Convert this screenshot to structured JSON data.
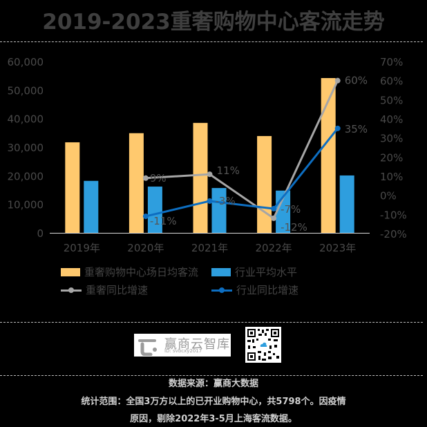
{
  "title": "2019-2023重奢购物中心客流走势",
  "chart_data": {
    "type": "bar+line",
    "title": "2019-2023重奢购物中心客流走势",
    "categories": [
      "2019年",
      "2020年",
      "2021年",
      "2022年",
      "2023年"
    ],
    "bar_series": [
      {
        "name": "重奢购物中心场日均客流",
        "color": "#FFC96E",
        "values": [
          31700,
          34900,
          38500,
          33900,
          54200
        ],
        "axis": "left"
      },
      {
        "name": "行业平均水平",
        "color": "#2E9EDE",
        "values": [
          18200,
          16200,
          15700,
          14800,
          20100
        ],
        "axis": "left"
      }
    ],
    "line_series": [
      {
        "name": "重奢同比增速",
        "color": "#A6A6A6",
        "values": [
          null,
          9,
          11,
          -12,
          60
        ],
        "labels": [
          "",
          "9%",
          "11%",
          "-12%",
          "60%"
        ],
        "axis": "right"
      },
      {
        "name": "行业同比增速",
        "color": "#0D6EC1",
        "values": [
          null,
          -11,
          -3,
          -7,
          35
        ],
        "labels": [
          "",
          "-11%",
          "-3%",
          "-7%",
          "35%"
        ],
        "axis": "right"
      }
    ],
    "left_axis": {
      "ylim": [
        0,
        60000
      ],
      "ticks": [
        "0",
        "10,000",
        "20,000",
        "30,000",
        "40,000",
        "50,000",
        "60,000"
      ]
    },
    "right_axis": {
      "ylim": [
        -20,
        70
      ],
      "ticks": [
        "-20%",
        "-10%",
        "0%",
        "10%",
        "20%",
        "30%",
        "40%",
        "50%",
        "60%",
        "70%"
      ]
    },
    "grid": false,
    "legend_position": "bottom"
  },
  "legend": {
    "bar1": "重奢购物中心场日均客流",
    "bar2": "行业平均水平",
    "line1": "重奢同比增速",
    "line2": "行业同比增速"
  },
  "branding": {
    "logo_name": "赢商云智库",
    "logo_id": "ID: svbcxy2017"
  },
  "footer": {
    "source": "数据来源：赢商大数据",
    "scope_line1": "统计范围：全国3万方以上的已开业购物中心，共5798个。因疫情",
    "scope_line2": "原因，剔除2022年3-5月上海客流数据。"
  }
}
